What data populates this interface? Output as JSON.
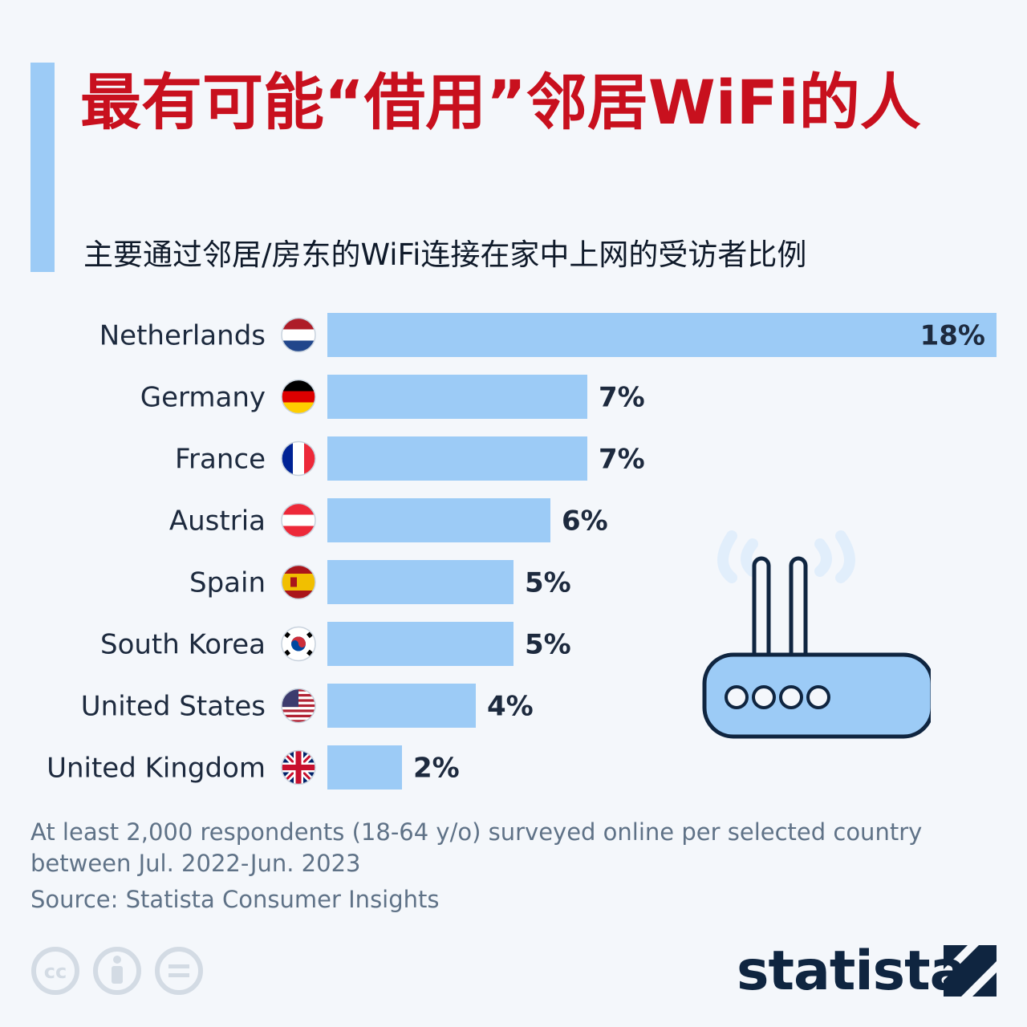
{
  "title": "最有可能“借用”邻居WiFi的人",
  "subtitle": "主要通过邻居/房东的WiFi连接在家中上网的受访者比例",
  "colors": {
    "title": "#c8101e",
    "bar": "#9ccbf6",
    "accent": "#9ccbf6",
    "text": "#1d2a3e"
  },
  "chart_data": {
    "type": "bar",
    "orientation": "horizontal",
    "categories": [
      "Netherlands",
      "Germany",
      "France",
      "Austria",
      "Spain",
      "South Korea",
      "United States",
      "United Kingdom"
    ],
    "values": [
      18,
      7,
      7,
      6,
      5,
      5,
      4,
      2
    ],
    "value_labels": [
      "18%",
      "7%",
      "7%",
      "6%",
      "5%",
      "5%",
      "4%",
      "2%"
    ],
    "flag_icons": [
      "netherlands-flag-icon",
      "germany-flag-icon",
      "france-flag-icon",
      "austria-flag-icon",
      "spain-flag-icon",
      "south-korea-flag-icon",
      "united-states-flag-icon",
      "united-kingdom-flag-icon"
    ],
    "xlim": [
      0,
      18
    ],
    "grid": false,
    "legend": "none"
  },
  "note": "At least 2,000 respondents (18-64 y/o) surveyed online per selected country between Jul. 2022-Jun. 2023",
  "source": "Source: Statista Consumer Insights",
  "license_icons": [
    "cc-icon",
    "attribution-icon",
    "no-derivatives-icon"
  ],
  "brand": "statista",
  "illustration_icon": "wifi-router-icon"
}
